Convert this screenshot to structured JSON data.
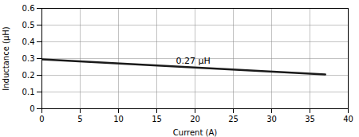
{
  "chart_data": {
    "type": "line",
    "x": [
      0,
      37
    ],
    "values": [
      0.295,
      0.205
    ],
    "color": "#1a1a1a",
    "xlabel": "Current (A)",
    "ylabel": "Inductance (μH)",
    "xlim": [
      0,
      40
    ],
    "ylim": [
      0,
      0.6
    ],
    "xticks": [
      0,
      5,
      10,
      15,
      20,
      25,
      30,
      35,
      40
    ],
    "yticks": [
      0,
      0.1,
      0.2,
      0.3,
      0.4,
      0.5,
      0.6
    ],
    "annotations": [
      {
        "text": "0.27 μH",
        "x": 17.5,
        "y": 0.268
      }
    ],
    "grid": true
  }
}
